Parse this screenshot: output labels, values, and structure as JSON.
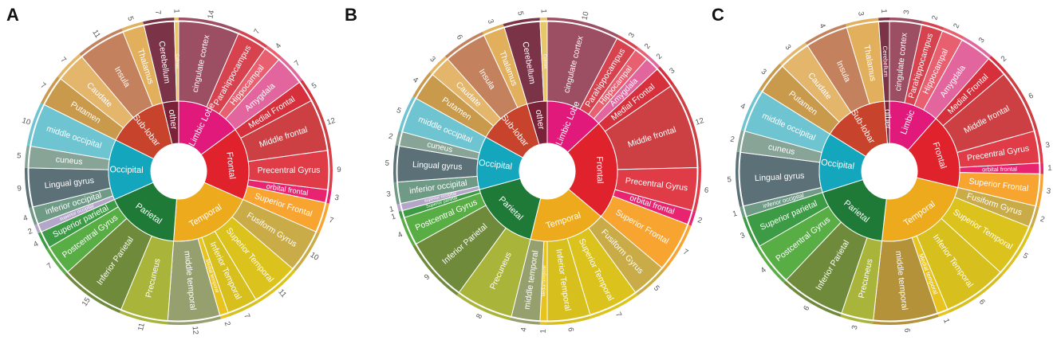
{
  "colors": {
    "Limbic": "#e0197a",
    "Frontal": "#e0222d",
    "Temporal": "#edaa1c",
    "Parietal": "#1e7a36",
    "Occipital": "#13a6bd",
    "Sub": "#c8432b",
    "Other": "#7a2238"
  },
  "chart_data": [
    {
      "type": "sunburst",
      "panel": "A",
      "lobes": [
        {
          "name": "Limbic Lobe",
          "color": "Limbic",
          "regions": [
            {
              "name": "cingulate cortex",
              "value": 14,
              "color": "#9c4e63"
            },
            {
              "name": "Parahippocampus",
              "value": 7,
              "color": "#d7424f"
            },
            {
              "name": "Hippocampal",
              "value": 4,
              "color": "#e85f70"
            },
            {
              "name": "Amygdala",
              "value": 7,
              "color": "#e2669d"
            }
          ]
        },
        {
          "name": "Frontal",
          "color": "Frontal",
          "regions": [
            {
              "name": "Medial Frontal",
              "value": 5,
              "color": "#d5303b"
            },
            {
              "name": "Middle frontal",
              "value": 12,
              "color": "#cc4044"
            },
            {
              "name": "Precentral Gyrus",
              "value": 9,
              "color": "#df3c47"
            },
            {
              "name": "orbital frontal",
              "value": 3,
              "color": "#e82470"
            },
            {
              "name": "Superior Frontal",
              "value": 7,
              "color": "#f7a431"
            }
          ]
        },
        {
          "name": "Temporal",
          "color": "Temporal",
          "regions": [
            {
              "name": "Fusiform Gyrus",
              "value": 10,
              "color": "#c9ab48"
            },
            {
              "name": "Superior Temporal",
              "value": 11,
              "color": "#dcc21c"
            },
            {
              "name": "Inferior Temporal",
              "value": 7,
              "color": "#d7bf1e"
            },
            {
              "name": "Medial temporal",
              "value": 2,
              "color": "#e8c320"
            },
            {
              "name": "middle temporal",
              "value": 12,
              "color": "#96a06f"
            }
          ]
        },
        {
          "name": "Parietal",
          "color": "Parietal",
          "regions": [
            {
              "name": "Precuneus",
              "value": 11,
              "color": "#a9b43a"
            },
            {
              "name": "Inferior Parietal",
              "value": 15,
              "color": "#6e8a3a"
            },
            {
              "name": "Postcentral Gyrus",
              "value": 7,
              "color": "#58ad45"
            },
            {
              "name": "Superior parietal",
              "value": 4,
              "color": "#3d9a45"
            }
          ]
        },
        {
          "name": "Occipital",
          "color": "Occipital",
          "regions": [
            {
              "name": "superior occipital",
              "value": 2,
              "color": "#b4a6c8"
            },
            {
              "name": "inferior occipital",
              "value": 4,
              "color": "#6e9a86"
            },
            {
              "name": "Lingual gyrus",
              "value": 9,
              "color": "#5b7177"
            },
            {
              "name": "cuneus",
              "value": 5,
              "color": "#87a496"
            },
            {
              "name": "middle occipital",
              "value": 10,
              "color": "#6ec4d0"
            }
          ]
        },
        {
          "name": "Sub-lobar",
          "color": "Sub",
          "regions": [
            {
              "name": "Putamen",
              "value": 7,
              "color": "#c99a4b"
            },
            {
              "name": "Caudate",
              "value": 7,
              "color": "#e4b66c"
            },
            {
              "name": "Insula",
              "value": 11,
              "color": "#c4815d"
            },
            {
              "name": "Thalamus",
              "value": 5,
              "color": "#e2b05d"
            }
          ]
        },
        {
          "name": "other",
          "color": "Other",
          "regions": [
            {
              "name": "Cerebellum",
              "value": 7,
              "color": "#7a3347"
            },
            {
              "name": "Culmen",
              "value": 1,
              "color": "#e6c76a"
            }
          ]
        }
      ]
    },
    {
      "type": "sunburst",
      "panel": "B",
      "lobes": [
        {
          "name": "Limbic Lobe",
          "color": "Limbic",
          "regions": [
            {
              "name": "cingulate cortex",
              "value": 10,
              "color": "#9c4e63"
            },
            {
              "name": "Parahippocampus",
              "value": 3,
              "color": "#d7424f"
            },
            {
              "name": "Hippocampal",
              "value": 2,
              "color": "#e85f70"
            },
            {
              "name": "Amygdala",
              "value": 2,
              "color": "#e2669d"
            }
          ]
        },
        {
          "name": "Frontal",
          "color": "Frontal",
          "regions": [
            {
              "name": "Medial Frontal",
              "value": 3,
              "color": "#d5303b"
            },
            {
              "name": "Middle frontal",
              "value": 12,
              "color": "#cc4044"
            },
            {
              "name": "Precentral Gyrus",
              "value": 6,
              "color": "#df3c47"
            },
            {
              "name": "orbital frontal",
              "value": 2,
              "color": "#e82470"
            },
            {
              "name": "Superior Frontal",
              "value": 7,
              "color": "#f7a431"
            }
          ]
        },
        {
          "name": "Temporal",
          "color": "Temporal",
          "regions": [
            {
              "name": "Fusiform Gyrus",
              "value": 5,
              "color": "#c9ab48"
            },
            {
              "name": "Superior Temporal",
              "value": 7,
              "color": "#dcc21c"
            },
            {
              "name": "Inferior Temporal",
              "value": 6,
              "color": "#d7bf1e"
            },
            {
              "name": "Medial temporal",
              "value": 1,
              "color": "#e8c320"
            },
            {
              "name": "middle temporal",
              "value": 4,
              "color": "#96a06f"
            }
          ]
        },
        {
          "name": "Parietal",
          "color": "Parietal",
          "regions": [
            {
              "name": "Precuneus",
              "value": 8,
              "color": "#a9b43a"
            },
            {
              "name": "Inferior Parietal",
              "value": 9,
              "color": "#6e8a3a"
            },
            {
              "name": "Postcentral Gyrus",
              "value": 4,
              "color": "#58ad45"
            },
            {
              "name": "Superior parietal",
              "value": 1,
              "color": "#3d9a45"
            }
          ]
        },
        {
          "name": "Occipital",
          "color": "Occipital",
          "regions": [
            {
              "name": "superior occipital",
              "value": 1,
              "color": "#b4a6c8"
            },
            {
              "name": "inferior occipital",
              "value": 3,
              "color": "#6e9a86"
            },
            {
              "name": "Lingual gyrus",
              "value": 5,
              "color": "#5b7177"
            },
            {
              "name": "cuneus",
              "value": 2,
              "color": "#87a496"
            },
            {
              "name": "middle occipital",
              "value": 5,
              "color": "#6ec4d0"
            }
          ]
        },
        {
          "name": "Sub-lobar",
          "color": "Sub",
          "regions": [
            {
              "name": "Putamen",
              "value": 4,
              "color": "#c99a4b"
            },
            {
              "name": "Caudate",
              "value": 3,
              "color": "#e4b66c"
            },
            {
              "name": "Insula",
              "value": 6,
              "color": "#c4815d"
            },
            {
              "name": "Thalamus",
              "value": 3,
              "color": "#e2b05d"
            }
          ]
        },
        {
          "name": "other",
          "color": "Other",
          "regions": [
            {
              "name": "Cerebellum",
              "value": 5,
              "color": "#7a3347"
            },
            {
              "name": "Culmen",
              "value": 1,
              "color": "#e6c76a"
            }
          ]
        }
      ]
    },
    {
      "type": "sunburst",
      "panel": "C",
      "lobes": [
        {
          "name": "Limbic",
          "color": "Limbic",
          "regions": [
            {
              "name": "cingulate cortex",
              "value": 3,
              "color": "#9c4e63"
            },
            {
              "name": "Parahippocampus",
              "value": 2,
              "color": "#d7424f"
            },
            {
              "name": "Hippocampal",
              "value": 2,
              "color": "#e85f70"
            },
            {
              "name": "Amygdala",
              "value": 3,
              "color": "#e2669d"
            }
          ]
        },
        {
          "name": "Frontal",
          "color": "Frontal",
          "regions": [
            {
              "name": "Medial Frontal",
              "value": 2,
              "color": "#d5303b"
            },
            {
              "name": "Middle frontal",
              "value": 6,
              "color": "#cc4044"
            },
            {
              "name": "Precentral Gyrus",
              "value": 3,
              "color": "#df3c47"
            },
            {
              "name": "orbital frontal",
              "value": 1,
              "color": "#e82470"
            },
            {
              "name": "Superior Frontal",
              "value": 3,
              "color": "#f7a431"
            }
          ]
        },
        {
          "name": "Temporal",
          "color": "Temporal",
          "regions": [
            {
              "name": "Fusiform Gyrus",
              "value": 2,
              "color": "#c9ab48"
            },
            {
              "name": "Superior Temporal",
              "value": 5,
              "color": "#dcc21c"
            },
            {
              "name": "Inferior Temporal",
              "value": 6,
              "color": "#d7bf1e"
            },
            {
              "name": "Medial temporal",
              "value": 1,
              "color": "#e8c320"
            },
            {
              "name": "middle temporal",
              "value": 6,
              "color": "#b4923a"
            }
          ]
        },
        {
          "name": "Parietal",
          "color": "Parietal",
          "regions": [
            {
              "name": "Precuneus",
              "value": 3,
              "color": "#a9b43a"
            },
            {
              "name": "Inferior Parietal",
              "value": 6,
              "color": "#6e8a3a"
            },
            {
              "name": "Postcentral Gyrus",
              "value": 4,
              "color": "#58ad45"
            },
            {
              "name": "Superior parietal",
              "value": 3,
              "color": "#3d9a45"
            }
          ]
        },
        {
          "name": "Occipital",
          "color": "Occipital",
          "regions": [
            {
              "name": "inferior occipital",
              "value": 1,
              "color": "#6e9a86"
            },
            {
              "name": "Lingual gyrus",
              "value": 5,
              "color": "#5b7177"
            },
            {
              "name": "cuneus",
              "value": 2,
              "color": "#87a496"
            },
            {
              "name": "middle occipital",
              "value": 4,
              "color": "#6ec4d0"
            }
          ]
        },
        {
          "name": "Sub-lobar",
          "color": "Sub",
          "regions": [
            {
              "name": "Putamen",
              "value": 3,
              "color": "#c99a4b"
            },
            {
              "name": "Caudate",
              "value": 3,
              "color": "#e4b66c"
            },
            {
              "name": "Insula",
              "value": 4,
              "color": "#c4815d"
            },
            {
              "name": "Thalamus",
              "value": 3,
              "color": "#e2b05d"
            }
          ]
        },
        {
          "name": "other",
          "color": "Other",
          "regions": [
            {
              "name": "Cerebellum",
              "value": 1,
              "color": "#7a3347"
            }
          ]
        }
      ]
    }
  ]
}
